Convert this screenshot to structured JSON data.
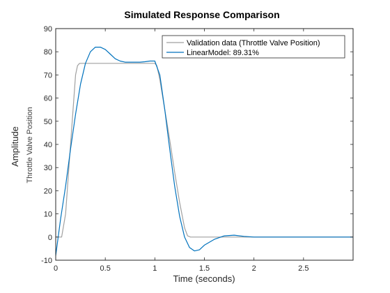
{
  "chart_data": {
    "type": "line",
    "title": "Simulated Response Comparison",
    "xlabel": "Time (seconds)",
    "ylabel": "Amplitude",
    "ylabel_sub": "Throttle Valve Position",
    "xlim": [
      0,
      3
    ],
    "ylim": [
      -10,
      90
    ],
    "xticks": [
      0,
      0.5,
      1,
      1.5,
      2,
      2.5
    ],
    "xtick_labels": [
      "0",
      "0.5",
      "1",
      "1.5",
      "2",
      "2.5"
    ],
    "yticks": [
      -10,
      0,
      10,
      20,
      30,
      40,
      50,
      60,
      70,
      80,
      90
    ],
    "ytick_labels": [
      "-10",
      "0",
      "10",
      "20",
      "30",
      "40",
      "50",
      "60",
      "70",
      "80",
      "90"
    ],
    "grid": false,
    "legend_position": "top-right",
    "series": [
      {
        "name": "Validation data (Throttle Valve Position)",
        "color": "#a0a0a0",
        "x": [
          0,
          0.03,
          0.06,
          0.1,
          0.15,
          0.2,
          0.22,
          0.24,
          0.3,
          0.4,
          0.5,
          0.6,
          0.7,
          0.8,
          0.9,
          1.0,
          1.02,
          1.05,
          1.1,
          1.15,
          1.2,
          1.25,
          1.3,
          1.33,
          1.36,
          1.4,
          1.6,
          1.8,
          2.0,
          2.5,
          3.0
        ],
        "y": [
          0,
          0,
          0,
          10,
          40,
          70,
          74,
          75,
          75,
          75,
          75,
          75,
          75,
          75,
          75,
          75,
          74,
          68,
          55,
          42,
          28,
          15,
          4,
          0.5,
          0,
          0,
          0,
          0,
          0,
          0,
          0
        ]
      },
      {
        "name": "LinearModel: 89.31%",
        "color": "#0072bd",
        "x": [
          0,
          0.05,
          0.1,
          0.15,
          0.2,
          0.25,
          0.3,
          0.35,
          0.4,
          0.45,
          0.5,
          0.55,
          0.6,
          0.65,
          0.7,
          0.75,
          0.8,
          0.85,
          0.9,
          0.95,
          1.0,
          1.05,
          1.1,
          1.15,
          1.2,
          1.25,
          1.3,
          1.35,
          1.4,
          1.45,
          1.5,
          1.6,
          1.7,
          1.8,
          1.9,
          2.0,
          2.2,
          2.5,
          3.0
        ],
        "y": [
          -8,
          8,
          22,
          38,
          53,
          66,
          75,
          80,
          82,
          82,
          81,
          79,
          77,
          76,
          75.5,
          75.5,
          75.5,
          75.5,
          75.7,
          76,
          76,
          70,
          55,
          38,
          22,
          9,
          0,
          -4.5,
          -6,
          -5.5,
          -3.5,
          -1,
          0.5,
          0.8,
          0.3,
          0,
          0,
          0,
          0
        ]
      }
    ]
  }
}
